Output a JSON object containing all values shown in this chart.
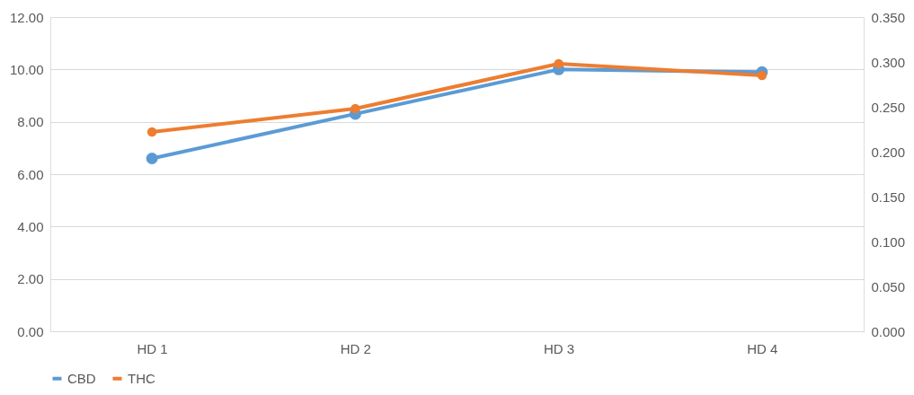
{
  "chart_data": {
    "type": "line",
    "categories": [
      "HD 1",
      "HD 2",
      "HD 3",
      "HD 4"
    ],
    "series": [
      {
        "name": "CBD",
        "color": "#5b9bd5",
        "values": [
          6.6,
          8.3,
          10.0,
          9.9
        ]
      },
      {
        "name": "THC",
        "color": "#ed7d31",
        "values": [
          0.222,
          0.248,
          0.298,
          0.285
        ],
        "axis": "y2"
      }
    ],
    "ylim": [
      0,
      12
    ],
    "yticks": [
      {
        "value": 0,
        "label": "0.00"
      },
      {
        "value": 2,
        "label": "2.00"
      },
      {
        "value": 4,
        "label": "4.00"
      },
      {
        "value": 6,
        "label": "6.00"
      },
      {
        "value": 8,
        "label": "8.00"
      },
      {
        "value": 10,
        "label": "10.00"
      },
      {
        "value": 12,
        "label": "12.00"
      }
    ],
    "y2lim": [
      0,
      0.35
    ],
    "y2ticks": [
      {
        "value": 0,
        "label": "0.000"
      },
      {
        "value": 0.05,
        "label": "0.050"
      },
      {
        "value": 0.1,
        "label": "0.100"
      },
      {
        "value": 0.15,
        "label": "0.150"
      },
      {
        "value": 0.2,
        "label": "0.200"
      },
      {
        "value": 0.25,
        "label": "0.250"
      },
      {
        "value": 0.3,
        "label": "0.300"
      },
      {
        "value": 0.35,
        "label": "0.350"
      }
    ],
    "grid": "y",
    "legend": "bottom",
    "marker": "circle",
    "line_style": "solid"
  }
}
